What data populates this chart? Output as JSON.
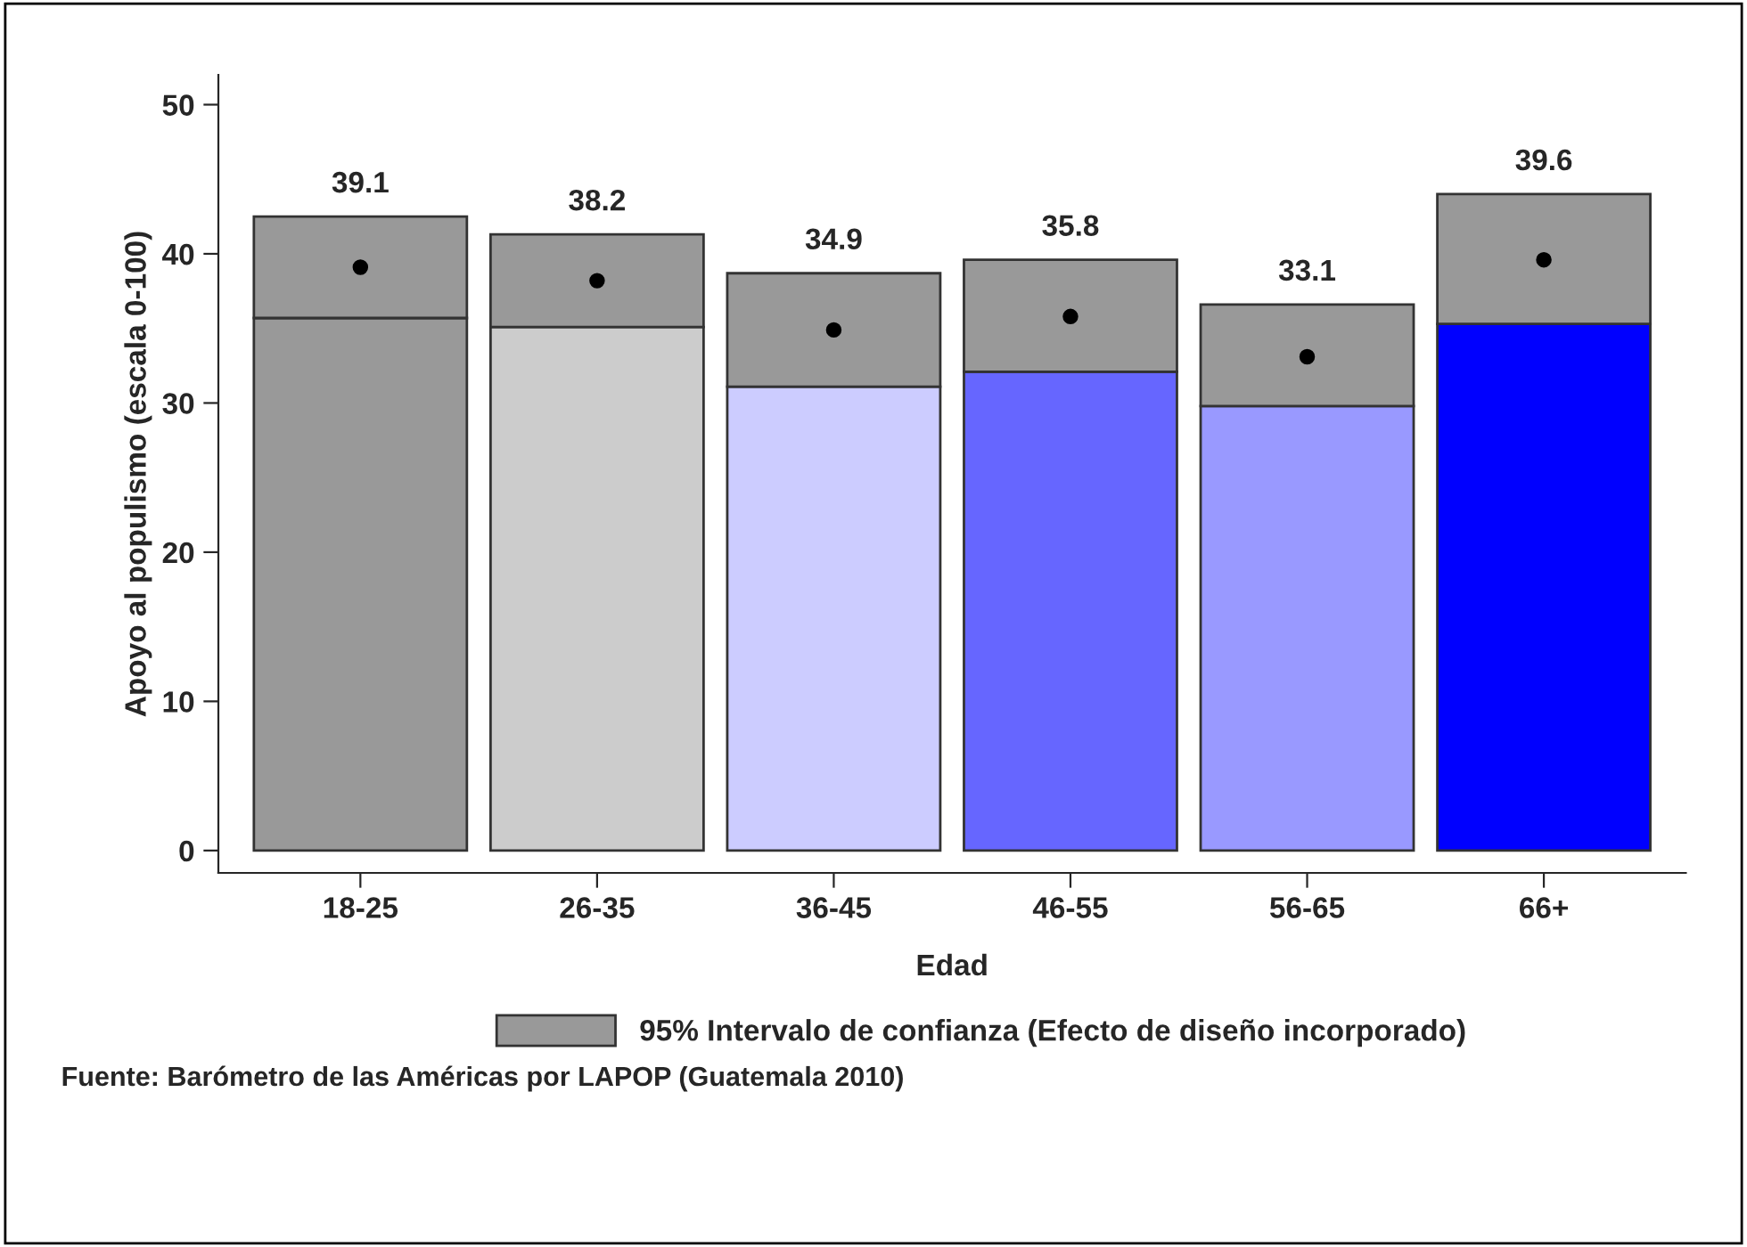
{
  "chart_data": {
    "type": "bar",
    "xlabel": "Edad",
    "ylabel": "Apoyo al populismo (escala 0-100)",
    "categories": [
      "18-25",
      "26-35",
      "36-45",
      "46-55",
      "56-65",
      "66+"
    ],
    "stacked": true,
    "series": [
      {
        "colors": [
          "#999999",
          "#cccccc",
          "#ccccff",
          "#6666ff",
          "#9999ff",
          "#0000ff"
        ],
        "values": [
          35.7,
          35.1,
          31.1,
          32.1,
          29.8,
          35.3
        ]
      },
      {
        "name": "95% Intervalo de confianza (Efecto de diseño incorporado)",
        "color": "#999999",
        "values": [
          6.8,
          6.2,
          7.6,
          7.5,
          6.8,
          8.7
        ]
      },
      {
        "type": "scatter",
        "color": "#000000",
        "marker": "circle",
        "values": [
          39.1,
          38.2,
          34.9,
          35.8,
          33.1,
          39.6
        ],
        "value_labels": [
          "39.1",
          "38.2",
          "34.9",
          "35.8",
          "33.1",
          "39.6"
        ]
      }
    ],
    "ylim": [
      -1.5,
      52
    ],
    "yticks": [
      0,
      10,
      20,
      30,
      40,
      50
    ],
    "grid": false,
    "legend": "bottom",
    "annotations": [
      "Fuente: Barómetro de las Américas por LAPOP (Guatemala 2010)"
    ]
  }
}
